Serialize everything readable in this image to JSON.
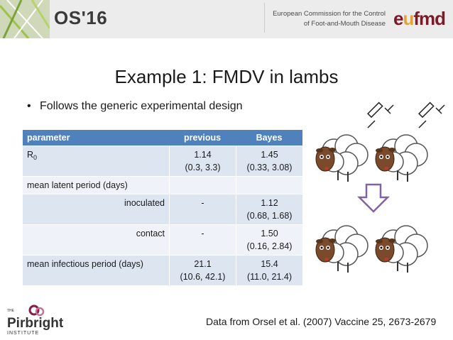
{
  "header": {
    "conference": "OS'16",
    "org_line1": "European Commission for the Control",
    "org_line2": "of Foot-and-Mouth Disease",
    "logo_text": "eufmd",
    "logo_prefix": "e",
    "logo_swirl": "u",
    "logo_suffix": "fmd"
  },
  "slide": {
    "title": "Example 1: FMDV in lambs",
    "bullet": "Follows the generic experimental design",
    "source": "Data from Orsel et al. (2007) Vaccine 25, 2673-2679"
  },
  "table": {
    "headers": [
      "parameter",
      "previous",
      "Bayes"
    ],
    "rows": [
      {
        "param_main": "R",
        "param_sub": "0",
        "previous": [
          "1.14",
          "(0.3, 3.3)"
        ],
        "bayes": [
          "1.45",
          "(0.33, 3.08)"
        ]
      },
      {
        "param_main": "mean latent period (days)",
        "param_sub": "",
        "previous": [
          "",
          ""
        ],
        "bayes": [
          "",
          ""
        ]
      },
      {
        "param_main": "inoculated",
        "param_sub": "",
        "previous": [
          "-",
          ""
        ],
        "bayes": [
          "1.12",
          "(0.68, 1.68)"
        ]
      },
      {
        "param_main": "contact",
        "param_sub": "",
        "previous": [
          "-",
          ""
        ],
        "bayes": [
          "1.50",
          "(0.16, 2.84)"
        ]
      },
      {
        "param_main": "mean infectious period (days)",
        "param_sub": "",
        "previous": [
          "21.1",
          "(10.6, 42.1)"
        ],
        "bayes": [
          "15.4",
          "(11.0, 21.4)"
        ]
      }
    ]
  },
  "logos": {
    "pirbright_small": "THE",
    "pirbright_name": "Pirbright",
    "pirbright_sub": "INSTITUTE"
  },
  "colors": {
    "table_header": "#4f81bd",
    "row_odd": "#dde5f1",
    "row_even": "#eff3f9",
    "arrow": "#8064a2",
    "eufmd": "#7b1b2a",
    "pirbright": "#8b1a4b"
  }
}
